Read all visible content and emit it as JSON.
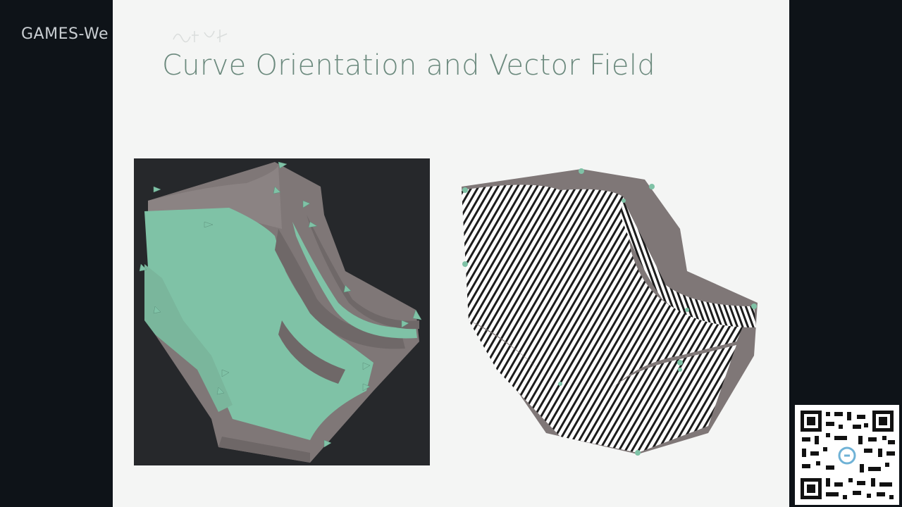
{
  "overlay": {
    "watermark": "GAMES-We"
  },
  "slide": {
    "title": "Curve Orientation and Vector Field"
  },
  "figures": {
    "left": {
      "icon": "green-mesh-render-image"
    },
    "right": {
      "icon": "striped-field-render-image"
    }
  },
  "colors": {
    "background": "#0e1318",
    "slide_background": "#f4f5f4",
    "title": "#6c8a7e",
    "mesh_green": "#7fc2a6",
    "mesh_grey": "#7f7777"
  },
  "qr_code": {
    "icon": "qr-code-icon"
  }
}
